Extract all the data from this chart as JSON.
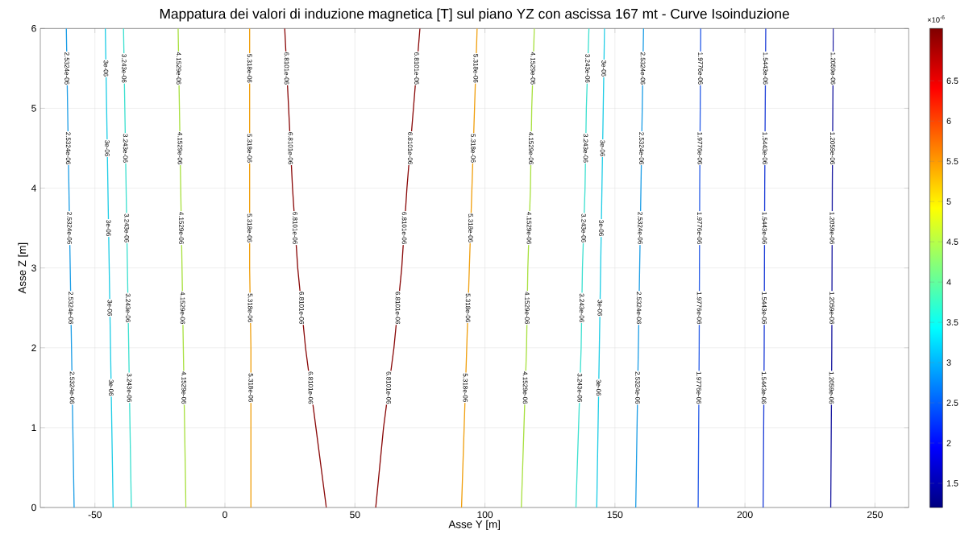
{
  "chart_data": {
    "type": "line",
    "title": "Mappatura dei valori di induzione magnetica [T] sul piano YZ con ascissa 167 mt - Curve Isoinduzione",
    "xlabel": "Asse Y [m]",
    "ylabel": "Asse Z [m]",
    "xlim": [
      -71,
      263
    ],
    "ylim": [
      0,
      6
    ],
    "xticks": [
      -50,
      0,
      50,
      100,
      150,
      200,
      250
    ],
    "yticks": [
      0,
      1,
      2,
      3,
      4,
      5,
      6
    ],
    "grid": true,
    "clim": [
      1.2,
      7.15
    ],
    "cticks": [
      1.5,
      2,
      2.5,
      3,
      3.5,
      4,
      4.5,
      5,
      5.5,
      6,
      6.5
    ],
    "annotations": [
      "×10$^{-6}$"
    ],
    "series": [
      {
        "name": "2.5324e-06",
        "color": "#1e9ee6",
        "x": [
          -58,
          -58.5,
          -59,
          -59.5,
          -60,
          -60.5,
          -61
        ],
        "values": [
          0,
          1,
          2,
          3,
          4,
          5,
          6
        ]
      },
      {
        "name": "3e-06",
        "color": "#20cde6",
        "x": [
          -43,
          -43.5,
          -44,
          -44.5,
          -45,
          -45.5,
          -46
        ],
        "values": [
          0,
          1,
          2,
          3,
          4,
          5,
          6
        ]
      },
      {
        "name": "3.243e-06",
        "color": "#3ee0d0",
        "x": [
          -36,
          -36.5,
          -37,
          -37.5,
          -38,
          -38.5,
          -39
        ],
        "values": [
          0,
          1,
          2,
          3,
          4,
          5,
          6
        ]
      },
      {
        "name": "4.1529e-06",
        "color": "#a8e040",
        "x": [
          -15,
          -15.5,
          -16,
          -16.5,
          -17,
          -17.5,
          -18
        ],
        "values": [
          0,
          1,
          2,
          3,
          4,
          5,
          6
        ]
      },
      {
        "name": "5.318e-06",
        "color": "#f0a010",
        "x": [
          10,
          10,
          10,
          9.5,
          9.5,
          9.5,
          9.5
        ],
        "values": [
          0,
          1,
          2,
          3,
          4,
          5,
          6
        ]
      },
      {
        "name": "6.8101e-06",
        "color": "#8a0a0a",
        "x": [
          39,
          35,
          31,
          28,
          26,
          24.5,
          23
        ],
        "values": [
          0,
          1,
          2,
          3,
          4,
          5,
          6
        ]
      },
      {
        "name": "6.8101e-06",
        "color": "#8a0a0a",
        "x": [
          58,
          61,
          65,
          68,
          70,
          72.5,
          75
        ],
        "values": [
          0,
          1,
          2,
          3,
          4,
          5,
          6
        ]
      },
      {
        "name": "5.318e-06",
        "color": "#f0a010",
        "x": [
          91,
          92,
          93,
          94,
          95,
          96,
          97
        ],
        "values": [
          0,
          1,
          2,
          3,
          4,
          5,
          6
        ]
      },
      {
        "name": "4.1529e-06",
        "color": "#a8e040",
        "x": [
          114,
          115,
          116,
          116.5,
          117.5,
          118,
          119
        ],
        "values": [
          0,
          1,
          2,
          3,
          4,
          5,
          6
        ]
      },
      {
        "name": "3.243e-06",
        "color": "#3ee0d0",
        "x": [
          135,
          136,
          137,
          137.5,
          138.5,
          139,
          140
        ],
        "values": [
          0,
          1,
          2,
          3,
          4,
          5,
          6
        ]
      },
      {
        "name": "3e-06",
        "color": "#20cde6",
        "x": [
          143,
          143.5,
          144,
          144.5,
          145,
          145.5,
          146
        ],
        "values": [
          0,
          1,
          2,
          3,
          4,
          5,
          6
        ]
      },
      {
        "name": "2.5324e-06",
        "color": "#1e9ee6",
        "x": [
          158,
          158.5,
          159,
          159.5,
          160,
          160.5,
          161
        ],
        "values": [
          0,
          1,
          2,
          3,
          4,
          5,
          6
        ]
      },
      {
        "name": "1.9776e-06",
        "color": "#2a5ee8",
        "x": [
          182,
          182.2,
          182.4,
          182.5,
          182.6,
          182.8,
          183
        ],
        "values": [
          0,
          1,
          2,
          3,
          4,
          5,
          6
        ]
      },
      {
        "name": "1.5443e-06",
        "color": "#1f3fd8",
        "x": [
          207,
          207.2,
          207.4,
          207.5,
          207.6,
          207.8,
          208
        ],
        "values": [
          0,
          1,
          2,
          3,
          4,
          5,
          6
        ]
      },
      {
        "name": "1.2059e-06",
        "color": "#1a1aa0",
        "x": [
          233,
          233.2,
          233.4,
          233.5,
          233.6,
          233.8,
          234
        ],
        "values": [
          0,
          1,
          2,
          3,
          4,
          5,
          6
        ]
      }
    ]
  }
}
